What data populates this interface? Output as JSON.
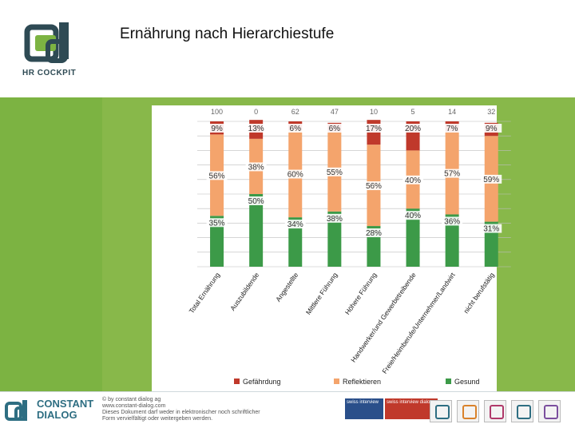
{
  "page": {
    "title": "Ernährung nach Hierarchiestufe"
  },
  "brand": {
    "logo_text": "HR COCKPIT"
  },
  "footer": {
    "company_line1": "CONSTANT",
    "company_line2": "DIALOG",
    "copyright_lines": [
      "© by constant dialog ag",
      "www.constant-dialog.com",
      "Dieses Dokument darf weder in elektronischer noch schriftlicher",
      "Form vervielfältigt oder weitergeben werden."
    ],
    "badges": [
      {
        "label": "swiss interview",
        "color": "#2a4f8a"
      },
      {
        "label": "swiss interview dialog",
        "color": "#c0392b"
      }
    ],
    "brand_icon_colors": [
      "#2e6e82",
      "#d9822b",
      "#b0396a",
      "#2e6e82",
      "#7b4f9e"
    ]
  },
  "chart_data": {
    "type": "bar",
    "stacked": true,
    "orientation": "vertical",
    "categories": [
      "Total Ernährung",
      "Auszubildende",
      "Angestellte",
      "Mittlere Führung",
      "Höhere Führung",
      "Handwerker/und Gewerbetreibende",
      "Freie/Heimberufe/Unternehmer/Landwirt",
      "nicht berufstätig"
    ],
    "top_labels": [
      "100",
      "0",
      "62",
      "47",
      "10",
      "5",
      "14",
      "32"
    ],
    "series": [
      {
        "name": "Gefährdung",
        "color": "#c0392b",
        "values": [
          9,
          13,
          6,
          6,
          17,
          20,
          7,
          9
        ]
      },
      {
        "name": "Reflektieren",
        "color": "#f4a46c",
        "values": [
          56,
          38,
          60,
          55,
          56,
          40,
          57,
          59
        ]
      },
      {
        "name": "Gesund",
        "color": "#3c9a48",
        "values": [
          35,
          50,
          34,
          38,
          28,
          40,
          36,
          31
        ]
      }
    ],
    "ylim": [
      0,
      100
    ],
    "grid": true,
    "legend": "bottom"
  }
}
